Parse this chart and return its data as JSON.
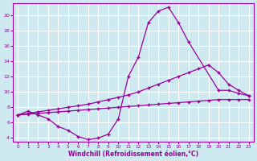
{
  "color": "#990099",
  "bg_color": "#ceeaf0",
  "grid_color": "#ffffff",
  "xlabel": "Windchill (Refroidissement éolien,°C)",
  "xlim": [
    -0.5,
    23.5
  ],
  "ylim": [
    3.5,
    21.5
  ],
  "yticks": [
    4,
    6,
    8,
    10,
    12,
    14,
    16,
    18,
    20
  ],
  "xticks": [
    0,
    1,
    2,
    3,
    4,
    5,
    6,
    7,
    8,
    9,
    10,
    11,
    12,
    13,
    14,
    15,
    16,
    17,
    18,
    19,
    20,
    21,
    22,
    23
  ],
  "line_spike_x": [
    0,
    1,
    2,
    3,
    4,
    5,
    6,
    7,
    8,
    9,
    10,
    11,
    12,
    13,
    14,
    15,
    16,
    17,
    20,
    21,
    22,
    23
  ],
  "line_spike_y": [
    7.0,
    7.5,
    7.0,
    6.5,
    5.5,
    5.0,
    4.2,
    3.8,
    4.0,
    4.5,
    6.5,
    12.0,
    14.5,
    19.0,
    20.5,
    21.0,
    19.0,
    16.5,
    10.2,
    10.2,
    9.8,
    9.5
  ],
  "line_upper_x": [
    0,
    1,
    2,
    3,
    4,
    5,
    6,
    7,
    8,
    9,
    10,
    11,
    12,
    13,
    14,
    15,
    16,
    17,
    18,
    19,
    20,
    21,
    22,
    23
  ],
  "line_upper_y": [
    7.0,
    7.2,
    7.4,
    7.6,
    7.8,
    8.0,
    8.2,
    8.4,
    8.7,
    9.0,
    9.3,
    9.6,
    10.0,
    10.5,
    11.0,
    11.5,
    12.0,
    12.5,
    13.0,
    13.5,
    12.5,
    11.0,
    10.2,
    9.5
  ],
  "line_lower_x": [
    0,
    1,
    2,
    3,
    4,
    5,
    6,
    7,
    8,
    9,
    10,
    11,
    12,
    13,
    14,
    15,
    16,
    17,
    18,
    19,
    20,
    21,
    22,
    23
  ],
  "line_lower_y": [
    7.0,
    7.1,
    7.2,
    7.3,
    7.4,
    7.5,
    7.6,
    7.7,
    7.8,
    7.9,
    8.0,
    8.1,
    8.2,
    8.3,
    8.4,
    8.5,
    8.6,
    8.7,
    8.8,
    8.9,
    9.0,
    9.0,
    9.0,
    9.0
  ]
}
